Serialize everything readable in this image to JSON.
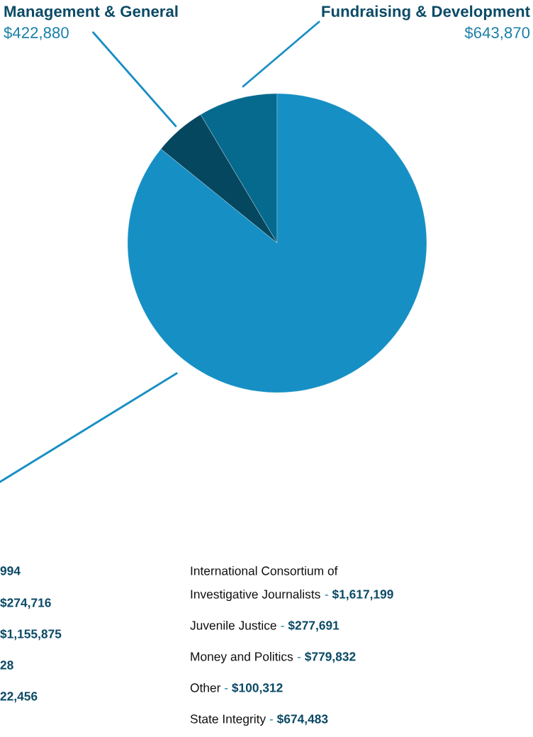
{
  "chart_data": {
    "type": "pie",
    "categories": [
      "Fundraising & Development",
      "Management & General",
      null
    ],
    "values": [
      643870,
      422880,
      6460000
    ],
    "value_labels": [
      "$643,870",
      "$422,880",
      null
    ],
    "colors": [
      "#066a8f",
      "#05475f",
      "#168fc4"
    ],
    "annotations": [
      "994",
      "$274,716",
      "$1,155,875",
      "28",
      "22,456",
      "International Consortium of\nInvestigative Journalists - $1,617,199",
      "Juvenile Justice - $277,691",
      "Money and Politics - $779,832",
      "Other - $100,312",
      "State Integrity - $674,483"
    ],
    "legend": false
  }
}
